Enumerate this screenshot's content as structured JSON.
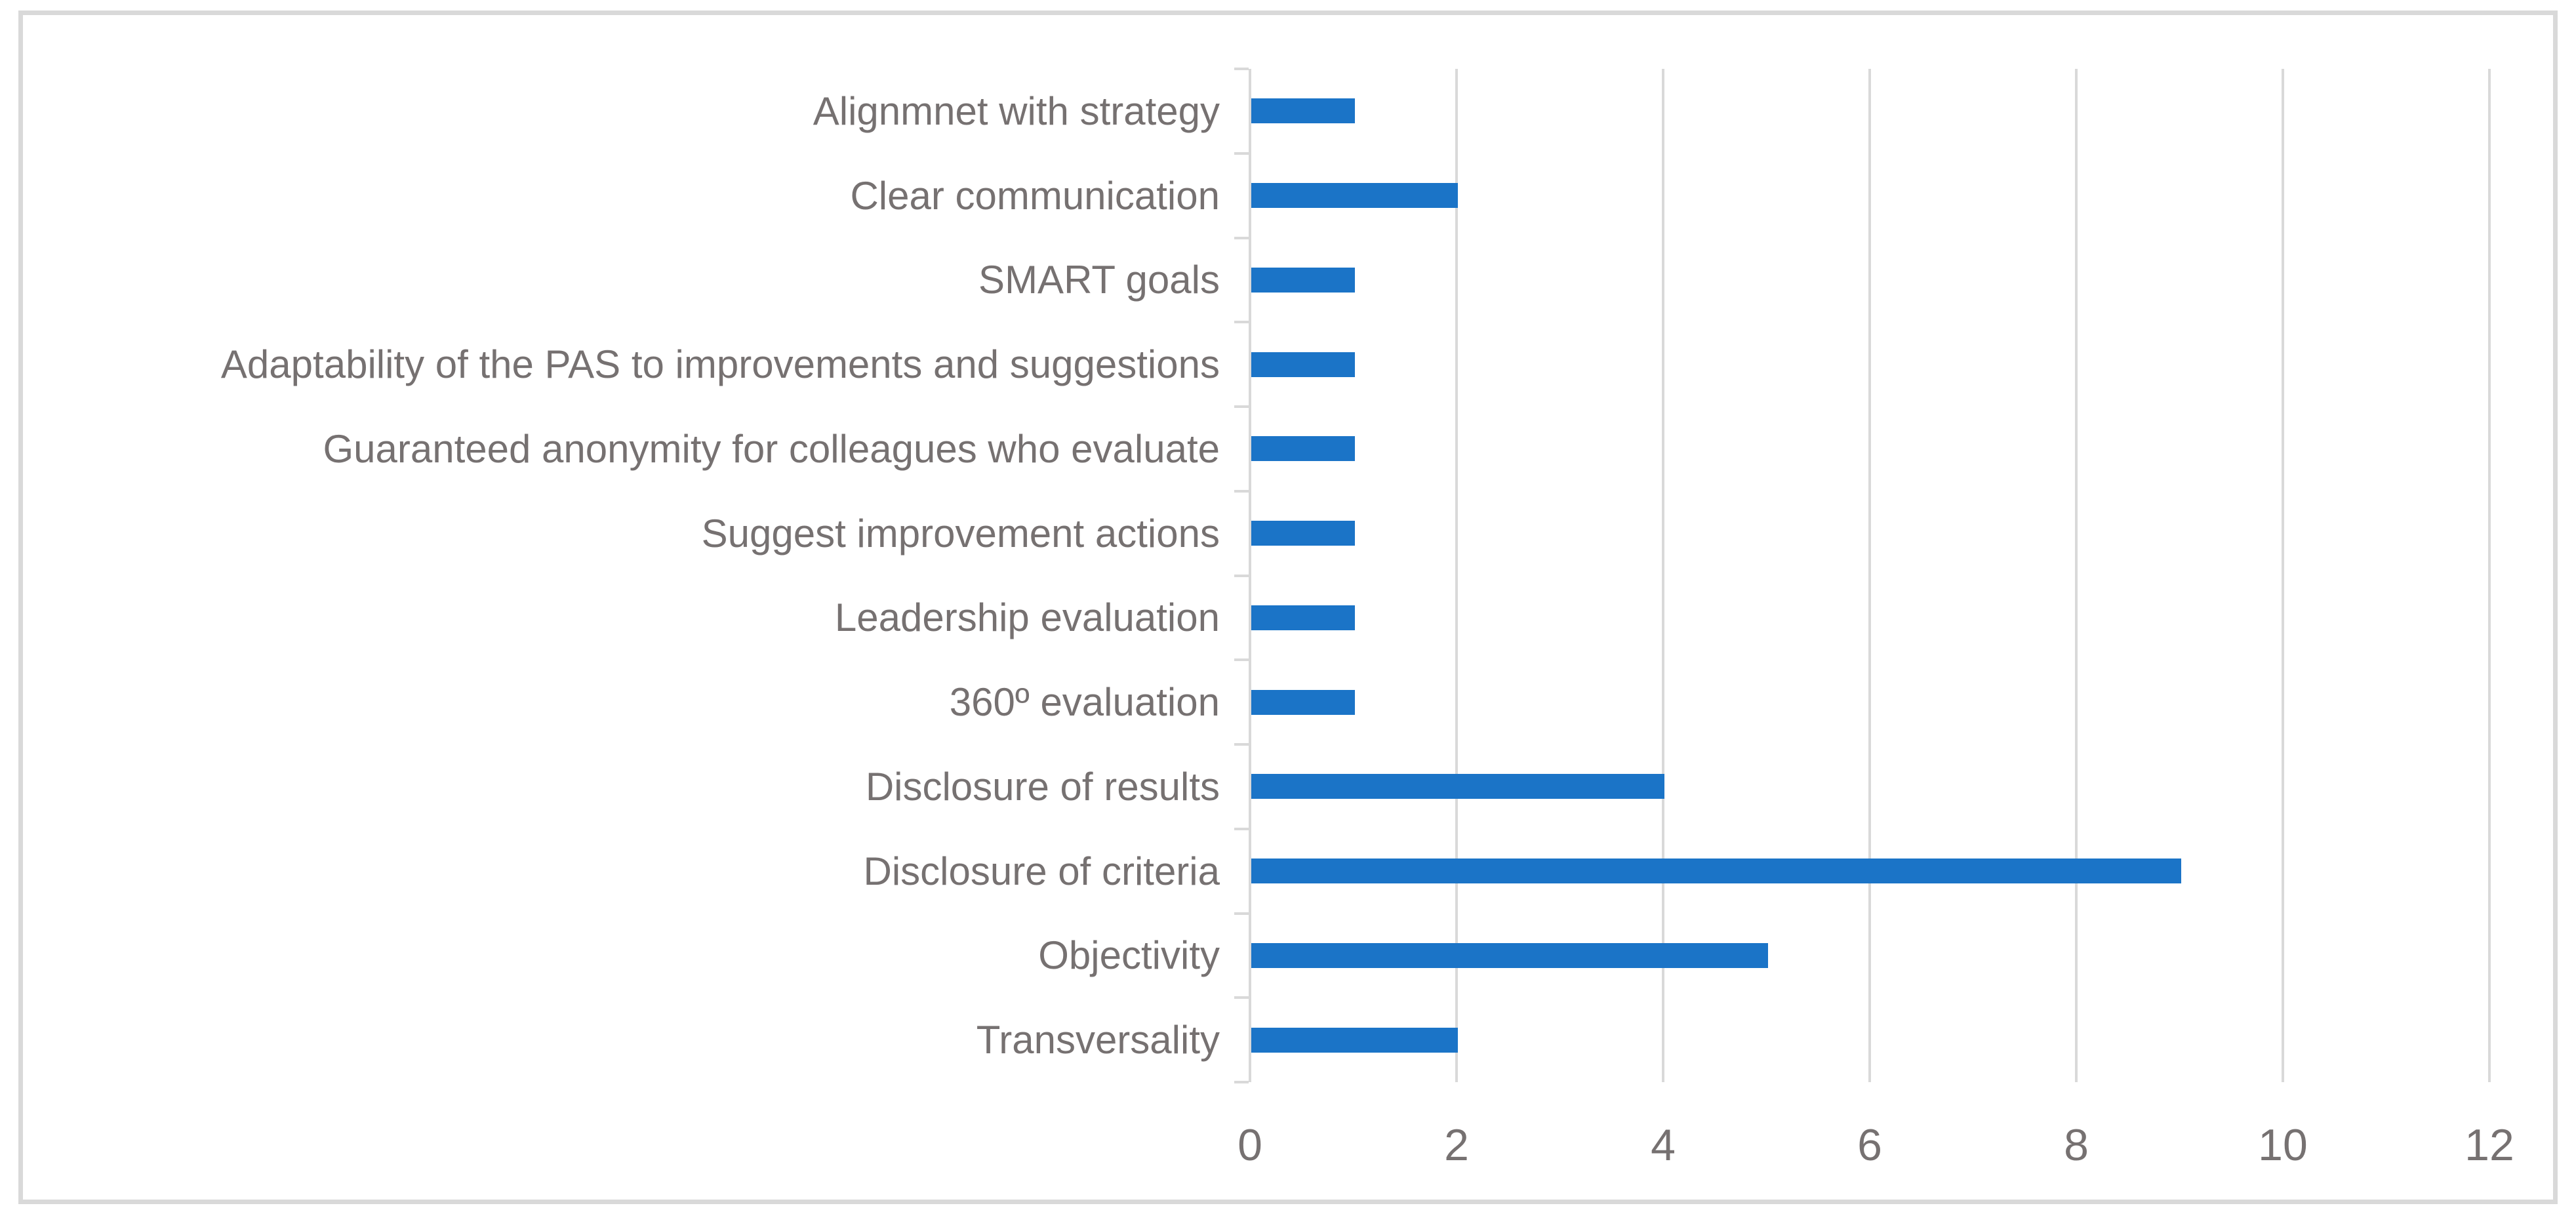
{
  "figure": {
    "background": "#FFFFFF",
    "border_color": "#D9D9D9"
  },
  "chart_data": {
    "type": "bar",
    "orientation": "horizontal",
    "title": "",
    "xlabel": "",
    "ylabel": "",
    "categories": [
      "Alignmnet with strategy",
      "Clear communication",
      "SMART goals",
      "Adaptability of the PAS to improvements and suggestions",
      "Guaranteed anonymity for colleagues who evaluate",
      "Suggest improvement actions",
      "Leadership evaluation",
      "360º evaluation",
      "Disclosure of results",
      "Disclosure of criteria",
      "Objectivity",
      "Transversality"
    ],
    "values": [
      1,
      2,
      1,
      1,
      1,
      1,
      1,
      1,
      4,
      9,
      5,
      2
    ],
    "x_ticks": [
      0,
      2,
      4,
      6,
      8,
      10,
      12
    ],
    "xlim": [
      0,
      12
    ],
    "grid": "vertical-only",
    "legend": "none",
    "bar_color": "#1B74C7",
    "gridline_color": "#D9D9D9",
    "axis_line_color": "#D9D9D9",
    "text_color": "#767171"
  }
}
